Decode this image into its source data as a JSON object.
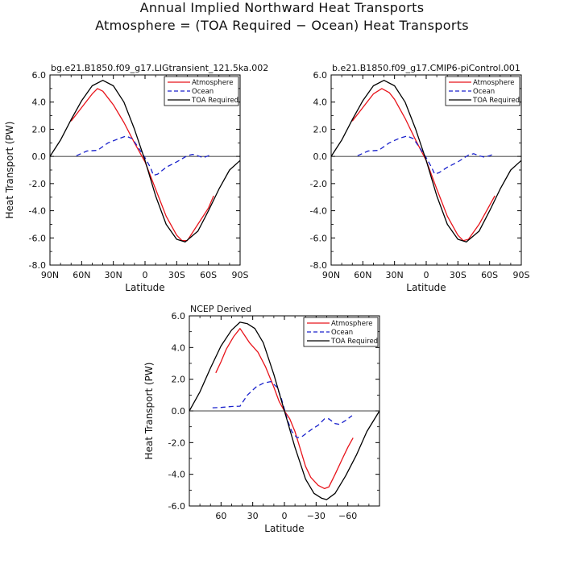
{
  "figure": {
    "title": "Annual Implied Northward Heat Transports",
    "subtitle": "Atmosphere = (TOA Required − Ocean) Heat Transports"
  },
  "chart_data": [
    {
      "type": "line",
      "title": "bg.e21.B1850.f09_g17.LIGtransient_121.5ka.002",
      "xlabel": "Latitude",
      "ylabel": "Heat Transport (PW)",
      "xlim": [
        90,
        -90
      ],
      "ylim": [
        -8,
        6
      ],
      "x_ticks": [
        90,
        60,
        30,
        0,
        -30,
        -60,
        -90
      ],
      "x_tick_labels": [
        "90N",
        "60N",
        "30N",
        "0",
        "30S",
        "60S",
        "90S"
      ],
      "y_ticks": [
        6,
        4,
        2,
        0,
        -2,
        -4,
        -6,
        -8
      ],
      "y_tick_labels": [
        "6.0",
        "4.0",
        "2.0",
        "0.0",
        "-2.0",
        "-4.0",
        "-6.0",
        "-8.0"
      ],
      "legend": "top-right",
      "series": [
        {
          "name": "Atmosphere",
          "color": "#e8141b",
          "dash": "solid",
          "points": [
            [
              70,
              2.6
            ],
            [
              60,
              3.6
            ],
            [
              50,
              4.6
            ],
            [
              45,
              5.0
            ],
            [
              40,
              4.8
            ],
            [
              30,
              3.8
            ],
            [
              20,
              2.5
            ],
            [
              10,
              1.0
            ],
            [
              0,
              -0.4
            ],
            [
              -10,
              -2.4
            ],
            [
              -20,
              -4.4
            ],
            [
              -30,
              -5.8
            ],
            [
              -35,
              -6.2
            ],
            [
              -40,
              -6.2
            ],
            [
              -50,
              -5.0
            ],
            [
              -60,
              -3.8
            ],
            [
              -65,
              -2.9
            ]
          ]
        },
        {
          "name": "Ocean",
          "color": "#1a22cc",
          "dash": "dashed",
          "points": [
            [
              65,
              0.05
            ],
            [
              55,
              0.4
            ],
            [
              45,
              0.45
            ],
            [
              35,
              1.0
            ],
            [
              25,
              1.3
            ],
            [
              18,
              1.5
            ],
            [
              12,
              1.3
            ],
            [
              5,
              0.5
            ],
            [
              0,
              -0.1
            ],
            [
              -5,
              -0.8
            ],
            [
              -8,
              -1.4
            ],
            [
              -12,
              -1.3
            ],
            [
              -20,
              -0.8
            ],
            [
              -30,
              -0.4
            ],
            [
              -40,
              0.05
            ],
            [
              -45,
              0.15
            ],
            [
              -50,
              0.05
            ],
            [
              -55,
              -0.1
            ],
            [
              -60,
              0.05
            ],
            [
              -63,
              0.2
            ]
          ]
        },
        {
          "name": "TOA Required",
          "color": "#000000",
          "dash": "solid",
          "points": [
            [
              90,
              0.0
            ],
            [
              80,
              1.2
            ],
            [
              70,
              2.7
            ],
            [
              60,
              4.1
            ],
            [
              50,
              5.2
            ],
            [
              40,
              5.6
            ],
            [
              30,
              5.2
            ],
            [
              20,
              4.0
            ],
            [
              10,
              2.0
            ],
            [
              0,
              -0.3
            ],
            [
              -10,
              -2.9
            ],
            [
              -20,
              -5.0
            ],
            [
              -30,
              -6.1
            ],
            [
              -38,
              -6.3
            ],
            [
              -50,
              -5.5
            ],
            [
              -60,
              -4.0
            ],
            [
              -70,
              -2.4
            ],
            [
              -80,
              -1.0
            ],
            [
              -90,
              -0.3
            ]
          ]
        }
      ]
    },
    {
      "type": "line",
      "title": "b.e21.B1850.f09_g17.CMIP6-piControl.001",
      "xlabel": "Latitude",
      "ylabel": "",
      "xlim": [
        90,
        -90
      ],
      "ylim": [
        -8,
        6
      ],
      "x_ticks": [
        90,
        60,
        30,
        0,
        -30,
        -60,
        -90
      ],
      "x_tick_labels": [
        "90N",
        "60N",
        "30N",
        "0",
        "30S",
        "60S",
        "90S"
      ],
      "y_ticks": [
        6,
        4,
        2,
        0,
        -2,
        -4,
        -6,
        -8
      ],
      "y_tick_labels": [
        "6.0",
        "4.0",
        "2.0",
        "0.0",
        "-2.0",
        "-4.0",
        "-6.0",
        "-8.0"
      ],
      "legend": "top-right",
      "series": [
        {
          "name": "Atmosphere",
          "color": "#e8141b",
          "dash": "solid",
          "points": [
            [
              70,
              2.6
            ],
            [
              60,
              3.6
            ],
            [
              50,
              4.6
            ],
            [
              42,
              5.0
            ],
            [
              35,
              4.7
            ],
            [
              30,
              4.2
            ],
            [
              20,
              2.8
            ],
            [
              10,
              1.2
            ],
            [
              0,
              -0.3
            ],
            [
              -10,
              -2.4
            ],
            [
              -20,
              -4.4
            ],
            [
              -30,
              -5.8
            ],
            [
              -35,
              -6.2
            ],
            [
              -40,
              -6.1
            ],
            [
              -50,
              -5.0
            ],
            [
              -60,
              -3.6
            ],
            [
              -65,
              -2.9
            ]
          ]
        },
        {
          "name": "Ocean",
          "color": "#1a22cc",
          "dash": "dashed",
          "points": [
            [
              65,
              0.05
            ],
            [
              55,
              0.4
            ],
            [
              45,
              0.45
            ],
            [
              35,
              1.0
            ],
            [
              25,
              1.35
            ],
            [
              18,
              1.5
            ],
            [
              12,
              1.3
            ],
            [
              5,
              0.5
            ],
            [
              0,
              -0.1
            ],
            [
              -5,
              -0.8
            ],
            [
              -8,
              -1.3
            ],
            [
              -12,
              -1.2
            ],
            [
              -20,
              -0.8
            ],
            [
              -30,
              -0.4
            ],
            [
              -40,
              0.1
            ],
            [
              -45,
              0.2
            ],
            [
              -50,
              0.05
            ],
            [
              -55,
              -0.05
            ],
            [
              -60,
              0.05
            ],
            [
              -63,
              0.15
            ]
          ]
        },
        {
          "name": "TOA Required",
          "color": "#000000",
          "dash": "solid",
          "points": [
            [
              90,
              0.0
            ],
            [
              80,
              1.2
            ],
            [
              70,
              2.7
            ],
            [
              60,
              4.1
            ],
            [
              50,
              5.2
            ],
            [
              40,
              5.6
            ],
            [
              30,
              5.2
            ],
            [
              20,
              4.0
            ],
            [
              10,
              2.0
            ],
            [
              0,
              -0.3
            ],
            [
              -10,
              -2.9
            ],
            [
              -20,
              -5.0
            ],
            [
              -30,
              -6.1
            ],
            [
              -38,
              -6.3
            ],
            [
              -50,
              -5.5
            ],
            [
              -60,
              -4.0
            ],
            [
              -70,
              -2.4
            ],
            [
              -80,
              -1.0
            ],
            [
              -90,
              -0.3
            ]
          ]
        }
      ]
    },
    {
      "type": "line",
      "title": "NCEP Derived",
      "xlabel": "Latitude",
      "ylabel": "Heat Transport (PW)",
      "xlim": [
        90,
        -90
      ],
      "ylim": [
        -6,
        6
      ],
      "x_ticks": [
        60,
        30,
        0,
        -30,
        -60
      ],
      "x_tick_labels": [
        "60",
        "30",
        "0",
        "−30",
        "−60"
      ],
      "y_ticks": [
        6,
        4,
        2,
        0,
        -2,
        -4,
        -6
      ],
      "y_tick_labels": [
        "6.0",
        "4.0",
        "2.0",
        "0.0",
        "-2.0",
        "-4.0",
        "-6.0"
      ],
      "legend": "top-right",
      "series": [
        {
          "name": "Atmosphere",
          "color": "#e8141b",
          "dash": "solid",
          "points": [
            [
              65,
              2.4
            ],
            [
              60,
              3.1
            ],
            [
              55,
              3.9
            ],
            [
              48,
              4.7
            ],
            [
              42,
              5.2
            ],
            [
              38,
              4.8
            ],
            [
              33,
              4.3
            ],
            [
              25,
              3.7
            ],
            [
              18,
              2.8
            ],
            [
              10,
              1.5
            ],
            [
              5,
              0.6
            ],
            [
              0,
              0.0
            ],
            [
              -5,
              -0.5
            ],
            [
              -10,
              -1.3
            ],
            [
              -15,
              -2.4
            ],
            [
              -20,
              -3.5
            ],
            [
              -25,
              -4.2
            ],
            [
              -32,
              -4.7
            ],
            [
              -38,
              -4.9
            ],
            [
              -42,
              -4.8
            ],
            [
              -48,
              -4.0
            ],
            [
              -55,
              -3.0
            ],
            [
              -60,
              -2.3
            ],
            [
              -65,
              -1.7
            ]
          ]
        },
        {
          "name": "Ocean",
          "color": "#1a22cc",
          "dash": "dashed",
          "points": [
            [
              68,
              0.2
            ],
            [
              60,
              0.22
            ],
            [
              50,
              0.28
            ],
            [
              42,
              0.3
            ],
            [
              35,
              1.0
            ],
            [
              27,
              1.5
            ],
            [
              20,
              1.75
            ],
            [
              13,
              1.85
            ],
            [
              7,
              1.5
            ],
            [
              3,
              0.8
            ],
            [
              0,
              0.1
            ],
            [
              -3,
              -0.6
            ],
            [
              -7,
              -1.3
            ],
            [
              -12,
              -1.7
            ],
            [
              -17,
              -1.6
            ],
            [
              -25,
              -1.2
            ],
            [
              -32,
              -0.9
            ],
            [
              -38,
              -0.5
            ],
            [
              -42,
              -0.5
            ],
            [
              -48,
              -0.8
            ],
            [
              -52,
              -0.85
            ],
            [
              -58,
              -0.6
            ],
            [
              -64,
              -0.3
            ]
          ]
        },
        {
          "name": "TOA Required",
          "color": "#000000",
          "dash": "solid",
          "points": [
            [
              90,
              0.0
            ],
            [
              80,
              1.2
            ],
            [
              70,
              2.7
            ],
            [
              60,
              4.1
            ],
            [
              50,
              5.1
            ],
            [
              42,
              5.6
            ],
            [
              35,
              5.5
            ],
            [
              28,
              5.2
            ],
            [
              20,
              4.3
            ],
            [
              10,
              2.3
            ],
            [
              0,
              0.0
            ],
            [
              -10,
              -2.3
            ],
            [
              -20,
              -4.3
            ],
            [
              -28,
              -5.2
            ],
            [
              -35,
              -5.5
            ],
            [
              -40,
              -5.6
            ],
            [
              -48,
              -5.2
            ],
            [
              -58,
              -4.1
            ],
            [
              -68,
              -2.8
            ],
            [
              -78,
              -1.3
            ],
            [
              -90,
              0.0
            ]
          ]
        }
      ]
    }
  ]
}
